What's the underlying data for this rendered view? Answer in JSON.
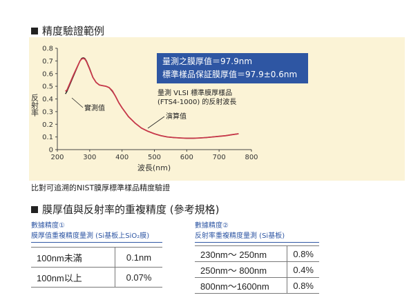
{
  "section1": {
    "title": "精度驗證範例"
  },
  "section2": {
    "title": "膜厚值與反射率的重複精度 (參考規格)"
  },
  "info_box": {
    "line1": "量測之膜厚值＝97.9nm",
    "line2": "標準樣品保証膜厚值＝97.9±0.6nm"
  },
  "sample_note": {
    "line1": "量測 VLSI 標準膜厚樣品",
    "line2": "(FTS4-1000) 的反射波長"
  },
  "caption": "比對可追溯的NIST膜厚標準樣品精度驗證",
  "chart_data": {
    "type": "line",
    "title": "",
    "xlabel": "波長(nm)",
    "ylabel": "反射率",
    "xlim": [
      200,
      800
    ],
    "ylim": [
      0,
      0.8
    ],
    "xticks": [
      200,
      300,
      400,
      500,
      600,
      700,
      800
    ],
    "yticks": [
      0,
      0.1,
      0.2,
      0.3,
      0.4,
      0.5,
      0.6,
      0.7,
      0.8
    ],
    "grid": false,
    "annotations": [
      "實測值",
      "演算值"
    ],
    "series": [
      {
        "name": "實測值",
        "color": "#222222",
        "x": [
          225,
          230,
          240,
          250,
          260,
          270,
          275,
          280,
          285,
          290,
          300,
          310,
          320,
          330,
          340,
          350,
          360,
          370,
          380,
          390,
          400,
          420,
          440,
          460,
          480,
          500,
          520,
          540,
          560,
          580,
          600,
          620,
          640,
          660,
          680,
          700,
          720,
          740,
          760
        ],
        "y": [
          0.44,
          0.46,
          0.52,
          0.58,
          0.64,
          0.7,
          0.72,
          0.725,
          0.72,
          0.7,
          0.64,
          0.57,
          0.53,
          0.51,
          0.505,
          0.5,
          0.49,
          0.46,
          0.42,
          0.37,
          0.33,
          0.26,
          0.21,
          0.17,
          0.145,
          0.125,
          0.11,
          0.1,
          0.095,
          0.092,
          0.09,
          0.09,
          0.092,
          0.095,
          0.1,
          0.105,
          0.11,
          0.118,
          0.125
        ]
      },
      {
        "name": "演算值",
        "color": "#c8384a",
        "x": [
          225,
          230,
          240,
          250,
          260,
          270,
          275,
          280,
          285,
          290,
          300,
          310,
          320,
          330,
          340,
          350,
          360,
          370,
          380,
          390,
          400,
          420,
          440,
          460,
          480,
          500,
          520,
          540,
          560,
          580,
          600,
          620,
          640,
          660,
          680,
          700,
          720,
          740,
          760
        ],
        "y": [
          0.46,
          0.47,
          0.53,
          0.59,
          0.645,
          0.7,
          0.715,
          0.72,
          0.715,
          0.695,
          0.635,
          0.57,
          0.53,
          0.51,
          0.505,
          0.5,
          0.49,
          0.465,
          0.42,
          0.37,
          0.33,
          0.26,
          0.21,
          0.17,
          0.145,
          0.125,
          0.11,
          0.1,
          0.095,
          0.092,
          0.09,
          0.09,
          0.092,
          0.095,
          0.1,
          0.105,
          0.11,
          0.118,
          0.125
        ]
      }
    ]
  },
  "table_a": {
    "subtitle": "數據精度①",
    "caption": "膜厚值重複精度量測 (Si基板上SiO₂膜)",
    "rows": [
      {
        "range": "100nm未滿",
        "value": "0.1nm"
      },
      {
        "range": "100nm以上",
        "value": "0.07%"
      }
    ]
  },
  "table_b": {
    "subtitle": "數據精度②",
    "caption": "反射率重複精度量測 (Si基板)",
    "rows": [
      {
        "range": "230nm～ 250nm",
        "value": "0.8%"
      },
      {
        "range": "250nm～ 800nm",
        "value": "0.4%"
      },
      {
        "range": "800nm～1600nm",
        "value": "0.8%"
      }
    ]
  }
}
